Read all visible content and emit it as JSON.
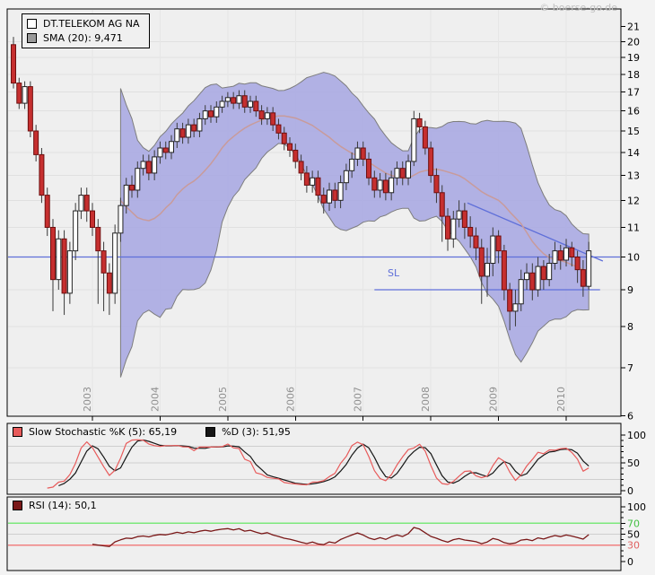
{
  "page": {
    "copyright": "© boerse-go.de"
  },
  "colors": {
    "panel_bg": "#efefef",
    "grid": "#e0e0e0",
    "year_grid": "#e6e6e6",
    "border": "#000000",
    "band_fill": "#a6a6e2",
    "band_outline": "#7d7d7d",
    "sma_line": "#c89b9b",
    "candle_up_fill": "#ffffff",
    "candle_up_border": "#222222",
    "candle_down_fill": "#c62f2f",
    "candle_down_border": "#6e0f0f",
    "wick": "#3a3a3a",
    "blue_line": "#5f6fd9",
    "stoch_k": "#e85b5b",
    "stoch_d": "#161616",
    "rsi_line": "#7a1818",
    "rsi_upper_line": "#7ce87c",
    "rsi_lower_line": "#f08080",
    "axis_text": "#000000",
    "year_text": "#909090",
    "tick_green": "#44c044",
    "tick_red": "#e06060"
  },
  "main_chart": {
    "legend": [
      {
        "swatch": "#ffffff",
        "label": "DT.TELEKOM AG NA"
      },
      {
        "swatch": "#999999",
        "label": "SMA (20): 9,471"
      }
    ],
    "price_ticks": [
      21,
      20,
      19,
      18,
      17,
      16,
      15,
      14,
      13,
      12,
      11,
      10,
      9,
      8,
      7,
      6
    ],
    "annotations": {
      "sl_label": "SL"
    }
  },
  "stoch_panel": {
    "legend": [
      {
        "swatch": "#e85b5b",
        "label": "Slow Stochastic %K (5): 65,19"
      },
      {
        "swatch": "#161616",
        "label": "%D (3): 51,95"
      }
    ],
    "ticks": [
      100,
      50,
      0
    ],
    "gridlines": [
      80,
      50,
      20
    ]
  },
  "rsi_panel": {
    "legend": [
      {
        "swatch": "#7a1818",
        "label": "RSI (14): 50,1"
      }
    ],
    "ticks": [
      {
        "v": 100,
        "color": "#000000"
      },
      {
        "v": 70,
        "color": "#44c044"
      },
      {
        "v": 50,
        "color": "#000000"
      },
      {
        "v": 30,
        "color": "#e06060"
      },
      {
        "v": 0,
        "color": "#000000"
      }
    ],
    "upper_level": 70,
    "mid_level": 50,
    "lower_level": 30
  },
  "chart_data": {
    "type": "candlestick",
    "symbol": "DT.TELEKOM AG NA",
    "scale": "log",
    "price_range": [
      6,
      21
    ],
    "years": [
      "2003",
      "2004",
      "2005",
      "2006",
      "2007",
      "2008",
      "2009",
      "2010"
    ],
    "year_indices": [
      14,
      26,
      38,
      50,
      62,
      74,
      86,
      98
    ],
    "sma_period": 20,
    "bollinger_sigma": 2,
    "sma_last_value": "9,471",
    "stochastic": {
      "k_period": 5,
      "slowing": 3,
      "d_period": 3,
      "k_last": "65,19",
      "d_last": "51,95"
    },
    "rsi": {
      "period": 14,
      "last": "50,1"
    },
    "levels": {
      "hline_full_price": 10,
      "hline_partial": {
        "price": 9,
        "i1": 64,
        "i2": 104
      },
      "trendline": {
        "i1": 80.5,
        "p1": 11.9,
        "i2": 104.5,
        "p2": 9.87
      }
    },
    "ohlc": [
      [
        19.8,
        20.3,
        17.2,
        17.5
      ],
      [
        17.5,
        17.8,
        16.1,
        16.4
      ],
      [
        16.4,
        17.6,
        16.1,
        17.3
      ],
      [
        17.3,
        17.6,
        14.7,
        15.0
      ],
      [
        15.0,
        15.3,
        13.6,
        13.9
      ],
      [
        13.9,
        14.2,
        11.9,
        12.2
      ],
      [
        12.2,
        12.5,
        10.7,
        11.0
      ],
      [
        11.0,
        11.3,
        8.4,
        9.3
      ],
      [
        9.3,
        10.9,
        9.0,
        10.6
      ],
      [
        10.6,
        10.9,
        8.3,
        8.9
      ],
      [
        8.9,
        10.5,
        8.6,
        10.2
      ],
      [
        10.2,
        11.9,
        9.9,
        11.6
      ],
      [
        11.6,
        12.5,
        11.3,
        12.2
      ],
      [
        12.2,
        12.5,
        11.2,
        11.6
      ],
      [
        11.6,
        11.9,
        10.7,
        11.0
      ],
      [
        11.0,
        11.3,
        8.6,
        10.2
      ],
      [
        10.2,
        10.5,
        8.4,
        9.5
      ],
      [
        9.5,
        9.8,
        8.3,
        8.9
      ],
      [
        8.9,
        11.1,
        8.6,
        10.8
      ],
      [
        10.8,
        12.1,
        10.5,
        11.8
      ],
      [
        11.8,
        12.9,
        11.5,
        12.6
      ],
      [
        12.6,
        13.0,
        12.1,
        12.4
      ],
      [
        12.4,
        13.6,
        12.1,
        13.3
      ],
      [
        13.3,
        13.9,
        13.0,
        13.6
      ],
      [
        13.6,
        13.9,
        12.8,
        13.1
      ],
      [
        13.1,
        14.1,
        12.8,
        13.8
      ],
      [
        13.8,
        14.5,
        13.5,
        14.2
      ],
      [
        14.2,
        14.5,
        13.7,
        14.0
      ],
      [
        14.0,
        14.8,
        13.7,
        14.5
      ],
      [
        14.5,
        15.4,
        14.2,
        15.1
      ],
      [
        15.1,
        15.4,
        14.4,
        14.7
      ],
      [
        14.7,
        15.6,
        14.4,
        15.3
      ],
      [
        15.3,
        15.6,
        14.7,
        15.0
      ],
      [
        15.0,
        15.9,
        14.7,
        15.6
      ],
      [
        15.6,
        16.3,
        15.3,
        16.0
      ],
      [
        16.0,
        16.3,
        15.4,
        15.7
      ],
      [
        15.7,
        16.5,
        15.4,
        16.2
      ],
      [
        16.2,
        16.8,
        15.9,
        16.5
      ],
      [
        16.5,
        17.0,
        16.2,
        16.7
      ],
      [
        16.7,
        17.0,
        16.1,
        16.4
      ],
      [
        16.4,
        17.1,
        16.1,
        16.8
      ],
      [
        16.8,
        17.1,
        15.9,
        16.2
      ],
      [
        16.2,
        16.8,
        15.9,
        16.5
      ],
      [
        16.5,
        16.8,
        15.7,
        16.0
      ],
      [
        16.0,
        16.3,
        15.3,
        15.6
      ],
      [
        15.6,
        16.2,
        15.3,
        15.9
      ],
      [
        15.9,
        16.2,
        15.0,
        15.3
      ],
      [
        15.3,
        15.6,
        14.6,
        14.9
      ],
      [
        14.9,
        15.2,
        14.1,
        14.4
      ],
      [
        14.4,
        14.7,
        13.8,
        14.1
      ],
      [
        14.1,
        14.4,
        13.3,
        13.6
      ],
      [
        13.6,
        13.9,
        12.8,
        13.1
      ],
      [
        13.1,
        13.4,
        12.3,
        12.6
      ],
      [
        12.6,
        13.2,
        12.3,
        12.9
      ],
      [
        12.9,
        13.2,
        11.9,
        12.2
      ],
      [
        12.2,
        12.5,
        11.5,
        11.9
      ],
      [
        11.9,
        12.7,
        11.6,
        12.4
      ],
      [
        12.4,
        12.7,
        11.7,
        12.0
      ],
      [
        12.0,
        13.0,
        11.7,
        12.7
      ],
      [
        12.7,
        13.5,
        12.4,
        13.2
      ],
      [
        13.2,
        14.0,
        12.9,
        13.7
      ],
      [
        13.7,
        14.5,
        13.4,
        14.2
      ],
      [
        14.2,
        14.5,
        13.4,
        13.7
      ],
      [
        13.7,
        14.0,
        12.6,
        12.9
      ],
      [
        12.9,
        13.2,
        12.1,
        12.4
      ],
      [
        12.4,
        13.1,
        12.1,
        12.8
      ],
      [
        12.8,
        13.1,
        12.0,
        12.3
      ],
      [
        12.3,
        13.2,
        12.0,
        12.9
      ],
      [
        12.9,
        13.6,
        12.6,
        13.3
      ],
      [
        13.3,
        13.6,
        12.6,
        12.9
      ],
      [
        12.9,
        13.9,
        12.6,
        13.6
      ],
      [
        13.6,
        16.0,
        13.4,
        15.6
      ],
      [
        15.6,
        15.9,
        14.9,
        15.2
      ],
      [
        15.2,
        15.5,
        13.9,
        14.2
      ],
      [
        14.2,
        14.5,
        12.7,
        13.0
      ],
      [
        13.0,
        13.3,
        11.9,
        12.3
      ],
      [
        12.3,
        12.6,
        10.5,
        11.4
      ],
      [
        11.4,
        11.7,
        10.2,
        10.6
      ],
      [
        10.6,
        11.6,
        10.3,
        11.3
      ],
      [
        11.3,
        12.0,
        11.0,
        11.6
      ],
      [
        11.6,
        11.9,
        10.6,
        11.0
      ],
      [
        11.0,
        11.4,
        10.3,
        10.7
      ],
      [
        10.7,
        11.0,
        9.9,
        10.3
      ],
      [
        10.3,
        10.6,
        8.6,
        9.4
      ],
      [
        9.4,
        10.3,
        8.8,
        9.8
      ],
      [
        9.8,
        11.0,
        9.4,
        10.7
      ],
      [
        10.7,
        10.9,
        9.8,
        10.2
      ],
      [
        10.2,
        10.4,
        8.7,
        9.0
      ],
      [
        9.0,
        9.2,
        7.9,
        8.4
      ],
      [
        8.4,
        9.0,
        8.0,
        8.6
      ],
      [
        8.6,
        9.6,
        8.4,
        9.3
      ],
      [
        9.3,
        9.8,
        9.0,
        9.5
      ],
      [
        9.5,
        9.8,
        8.7,
        9.0
      ],
      [
        9.0,
        10.0,
        8.8,
        9.7
      ],
      [
        9.7,
        9.9,
        9.0,
        9.3
      ],
      [
        9.3,
        10.1,
        9.1,
        9.8
      ],
      [
        9.8,
        10.5,
        9.6,
        10.2
      ],
      [
        10.2,
        10.4,
        9.6,
        9.9
      ],
      [
        9.9,
        10.6,
        9.7,
        10.3
      ],
      [
        10.3,
        10.5,
        9.7,
        10.0
      ],
      [
        10.0,
        10.2,
        9.2,
        9.6
      ],
      [
        9.6,
        9.9,
        8.8,
        9.1
      ],
      [
        9.1,
        10.5,
        9.0,
        10.2
      ]
    ]
  }
}
